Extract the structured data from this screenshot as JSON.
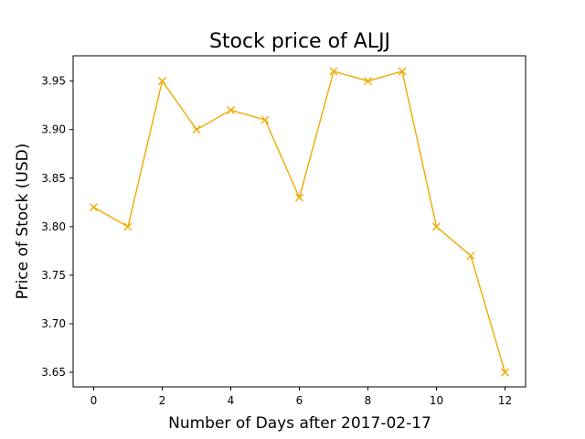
{
  "chart_data": {
    "type": "line",
    "title": "Stock price of ALJJ",
    "xlabel": "Number of Days after 2017-02-17",
    "ylabel": "Price of Stock (USD)",
    "x": [
      0,
      1,
      2,
      3,
      4,
      5,
      6,
      7,
      8,
      9,
      10,
      11,
      12
    ],
    "series": [
      {
        "values": [
          3.82,
          3.8,
          3.95,
          3.9,
          3.92,
          3.91,
          3.83,
          3.96,
          3.95,
          3.96,
          3.8,
          3.77,
          3.65
        ],
        "color": "#f2a900",
        "marker": "x"
      }
    ],
    "xlim": [
      -0.6,
      12.6
    ],
    "ylim": [
      3.635,
      3.976
    ],
    "xticks": [
      0,
      2,
      4,
      6,
      8,
      10,
      12
    ],
    "xtick_labels": [
      "0",
      "2",
      "4",
      "6",
      "8",
      "10",
      "12"
    ],
    "yticks": [
      3.65,
      3.7,
      3.75,
      3.8,
      3.85,
      3.9,
      3.95
    ],
    "ytick_labels": [
      "3.65",
      "3.70",
      "3.75",
      "3.80",
      "3.85",
      "3.90",
      "3.95"
    ],
    "grid": false
  }
}
